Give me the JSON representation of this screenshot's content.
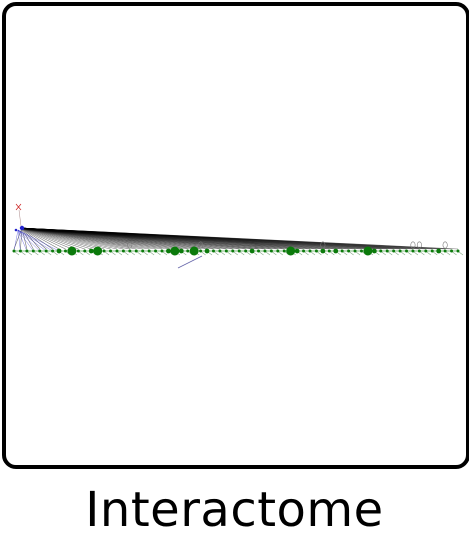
{
  "caption": "Interactome",
  "colors": {
    "frame": "#000000",
    "node": "#0b7a0b",
    "edge": "#000000",
    "hub": "#2222cc",
    "accent": "#cc2222",
    "background": "#ffffff"
  }
}
